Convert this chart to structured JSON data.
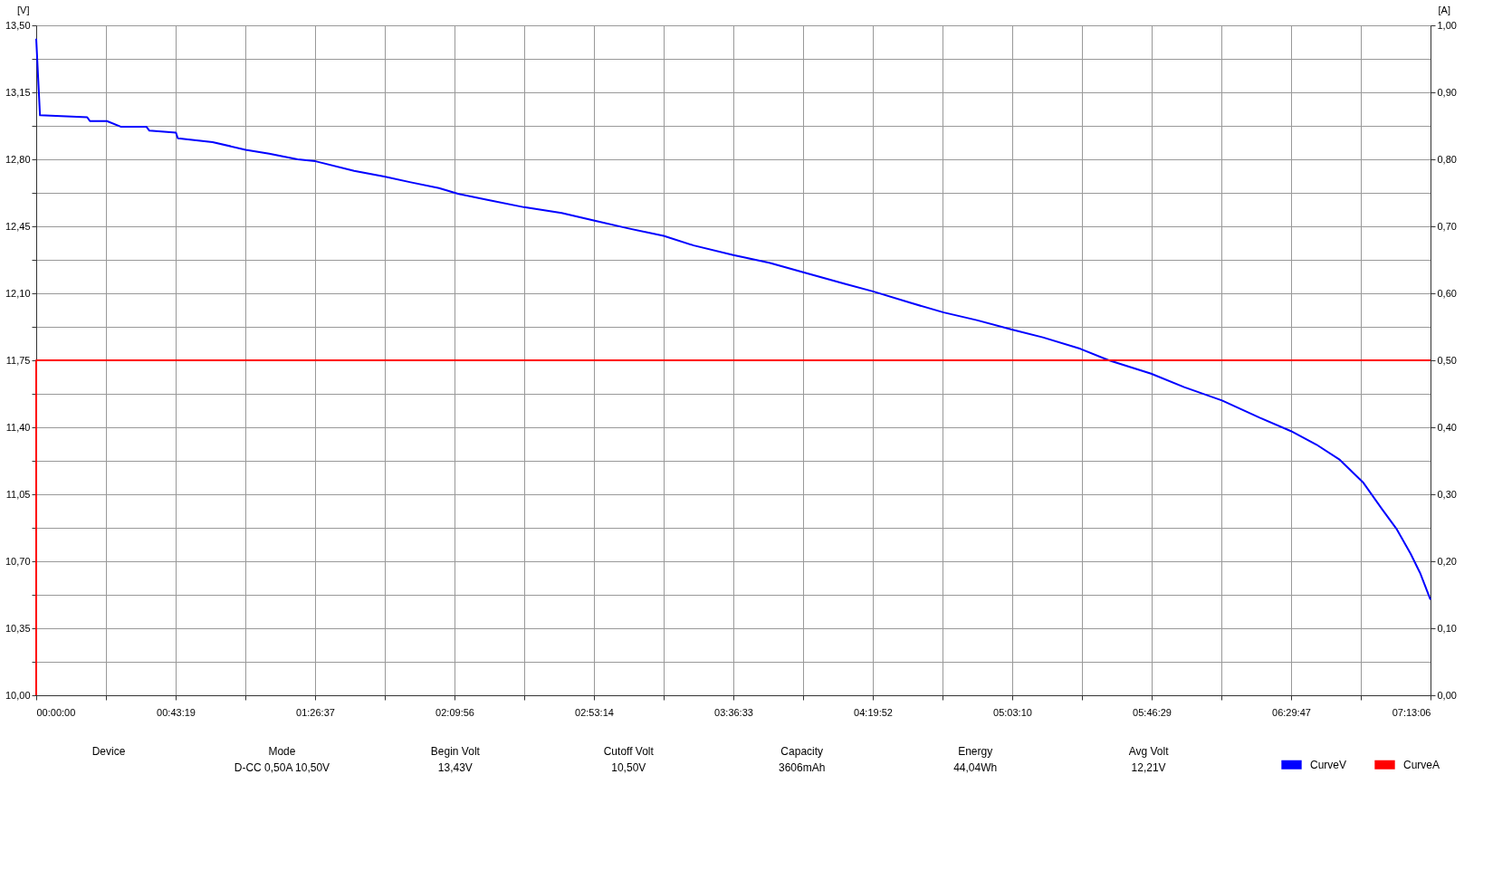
{
  "chart_data": {
    "type": "line",
    "ylabel": "[V]",
    "y2label": "[A]",
    "xlim": [
      0,
      7.21833
    ],
    "xticks": [
      {
        "value": 0,
        "label": "00:00:00"
      },
      {
        "value": 0.36097,
        "label": null
      },
      {
        "value": 0.72194,
        "label": "00:43:19"
      },
      {
        "value": 1.08278,
        "label": null
      },
      {
        "value": 1.44361,
        "label": "01:26:37"
      },
      {
        "value": 1.80458,
        "label": null
      },
      {
        "value": 2.16556,
        "label": "02:09:56"
      },
      {
        "value": 2.52639,
        "label": null
      },
      {
        "value": 2.88722,
        "label": "02:53:14"
      },
      {
        "value": 3.24819,
        "label": null
      },
      {
        "value": 3.60917,
        "label": "03:36:33"
      },
      {
        "value": 3.97014,
        "label": null
      },
      {
        "value": 4.33111,
        "label": "04:19:52"
      },
      {
        "value": 4.69194,
        "label": null
      },
      {
        "value": 5.05278,
        "label": "05:03:10"
      },
      {
        "value": 5.41375,
        "label": null
      },
      {
        "value": 5.77472,
        "label": "05:46:29"
      },
      {
        "value": 6.13556,
        "label": null
      },
      {
        "value": 6.49639,
        "label": "06:29:47"
      },
      {
        "value": 6.85736,
        "label": null
      },
      {
        "value": 7.21833,
        "label": "07:13:06"
      }
    ],
    "ylim": [
      10.0,
      13.5
    ],
    "yticks": [
      {
        "value": 10.0,
        "label": "10,00"
      },
      {
        "value": 10.175,
        "label": null
      },
      {
        "value": 10.35,
        "label": "10,35"
      },
      {
        "value": 10.525,
        "label": null
      },
      {
        "value": 10.7,
        "label": "10,70"
      },
      {
        "value": 10.875,
        "label": null
      },
      {
        "value": 11.05,
        "label": "11,05"
      },
      {
        "value": 11.225,
        "label": null
      },
      {
        "value": 11.4,
        "label": "11,40"
      },
      {
        "value": 11.575,
        "label": null
      },
      {
        "value": 11.75,
        "label": "11,75"
      },
      {
        "value": 11.925,
        "label": null
      },
      {
        "value": 12.1,
        "label": "12,10"
      },
      {
        "value": 12.275,
        "label": null
      },
      {
        "value": 12.45,
        "label": "12,45"
      },
      {
        "value": 12.625,
        "label": null
      },
      {
        "value": 12.8,
        "label": "12,80"
      },
      {
        "value": 12.975,
        "label": null
      },
      {
        "value": 13.15,
        "label": "13,15"
      },
      {
        "value": 13.325,
        "label": null
      },
      {
        "value": 13.5,
        "label": "13,50"
      }
    ],
    "y2lim": [
      0,
      1
    ],
    "y2ticks": [
      {
        "value": 0,
        "label": "0,00"
      },
      {
        "value": 0.1,
        "label": "0,10"
      },
      {
        "value": 0.2,
        "label": "0,20"
      },
      {
        "value": 0.3,
        "label": "0,30"
      },
      {
        "value": 0.4,
        "label": "0,40"
      },
      {
        "value": 0.5,
        "label": "0,50"
      },
      {
        "value": 0.6,
        "label": "0,60"
      },
      {
        "value": 0.7,
        "label": "0,70"
      },
      {
        "value": 0.8,
        "label": "0,80"
      },
      {
        "value": 0.9,
        "label": "0,90"
      },
      {
        "value": 1.0,
        "label": "1,00"
      }
    ],
    "grid": true,
    "legend": "bottom right",
    "line_style": "solid",
    "marker": "none",
    "series": [
      {
        "name": "CurveV",
        "color": "#0000ff",
        "x": [
          0,
          0.0195,
          0.264,
          0.278,
          0.366,
          0.44,
          0.571,
          0.586,
          0.723,
          0.733,
          0.913,
          1.084,
          1.206,
          1.353,
          1.446,
          1.646,
          1.802,
          1.939,
          2.085,
          2.183,
          2.33,
          2.525,
          2.72,
          2.891,
          3.062,
          3.248,
          3.404,
          3.609,
          3.795,
          3.971,
          4.186,
          4.332,
          4.527,
          4.698,
          4.869,
          5.055,
          5.211,
          5.406,
          5.553,
          5.772,
          5.943,
          6.139,
          6.334,
          6.496,
          6.627,
          6.749,
          6.871,
          6.969,
          7.042,
          7.115,
          7.164,
          7.218
        ],
        "values": [
          13.43,
          13.03,
          13.02,
          13.0,
          13.0,
          12.97,
          12.97,
          12.95,
          12.94,
          12.91,
          12.89,
          12.85,
          12.83,
          12.8,
          12.79,
          12.74,
          12.71,
          12.68,
          12.65,
          12.62,
          12.59,
          12.55,
          12.52,
          12.48,
          12.44,
          12.4,
          12.35,
          12.3,
          12.26,
          12.21,
          12.15,
          12.11,
          12.05,
          12.0,
          11.96,
          11.91,
          11.87,
          11.81,
          11.75,
          11.68,
          11.61,
          11.54,
          11.45,
          11.38,
          11.31,
          11.23,
          11.11,
          10.97,
          10.87,
          10.74,
          10.64,
          10.5
        ]
      },
      {
        "name": "CurveA",
        "color": "#ff0000",
        "axis": "y2",
        "x": [
          0,
          0.0001,
          7.21833
        ],
        "values": [
          0,
          0.5,
          0.5
        ]
      }
    ],
    "annotations": [
      "Device",
      "Mode",
      "Begin Volt",
      "Cutoff Volt",
      "Capacity",
      "Energy",
      "Avg Volt",
      "D-CC 0,50A 10,50V",
      "13,43V",
      "10,50V",
      "3606mAh",
      "44,04Wh",
      "12,21V"
    ]
  }
}
